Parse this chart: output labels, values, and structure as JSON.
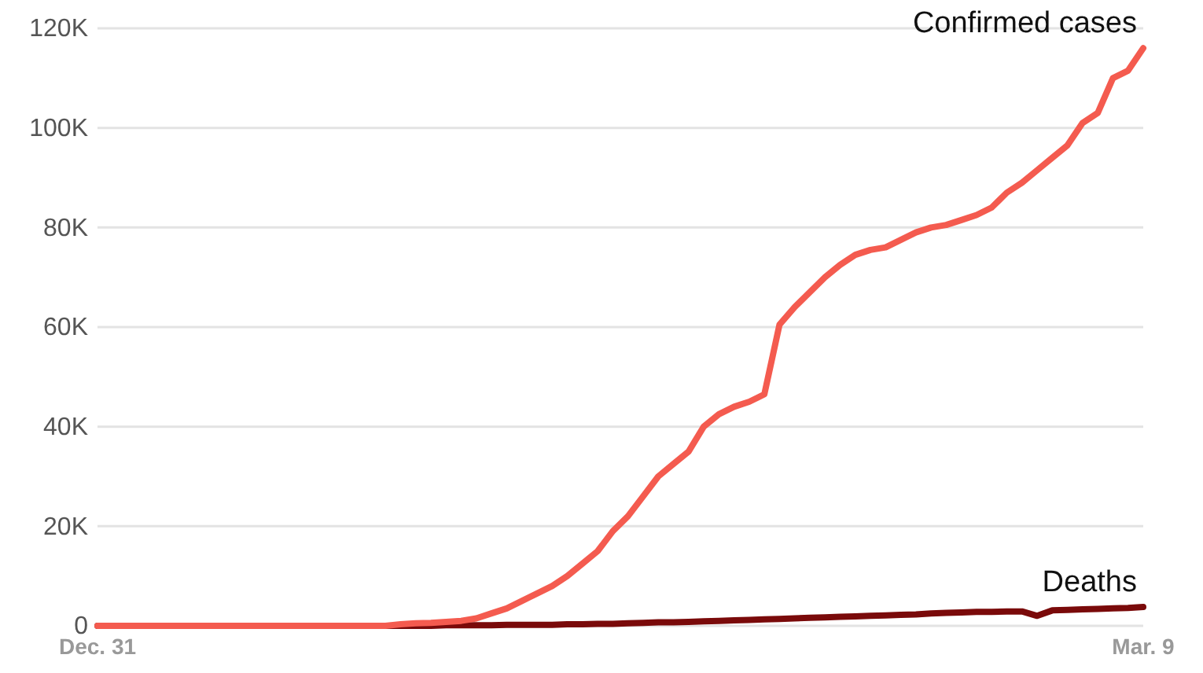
{
  "chart_data": {
    "type": "line",
    "ylim": [
      0,
      120000
    ],
    "yticks": [
      {
        "value": 0,
        "label": "0"
      },
      {
        "value": 20000,
        "label": "20K"
      },
      {
        "value": 40000,
        "label": "40K"
      },
      {
        "value": 60000,
        "label": "60K"
      },
      {
        "value": 80000,
        "label": "80K"
      },
      {
        "value": 100000,
        "label": "100K"
      },
      {
        "value": 120000,
        "label": "120K"
      }
    ],
    "categories": [
      "Dec. 31",
      null,
      null,
      null,
      null,
      null,
      null,
      null,
      null,
      null,
      null,
      null,
      null,
      null,
      null,
      null,
      null,
      null,
      null,
      null,
      null,
      null,
      null,
      null,
      null,
      null,
      null,
      null,
      null,
      null,
      null,
      null,
      null,
      null,
      null,
      null,
      null,
      null,
      null,
      null,
      null,
      null,
      null,
      null,
      null,
      null,
      null,
      null,
      null,
      null,
      null,
      null,
      null,
      null,
      null,
      null,
      null,
      null,
      null,
      null,
      null,
      null,
      null,
      null,
      null,
      null,
      null,
      null,
      null,
      "Mar. 9"
    ],
    "grid": "y",
    "line_style": "solid",
    "series": [
      {
        "name": "Confirmed cases",
        "color": "#f45b4f",
        "values": [
          0,
          0,
          0,
          0,
          0,
          0,
          0,
          0,
          0,
          0,
          0,
          0,
          0,
          0,
          0,
          0,
          0,
          0,
          0,
          0,
          300,
          500,
          600,
          800,
          1000,
          1500,
          2500,
          3500,
          5000,
          6500,
          8000,
          10000,
          12500,
          15000,
          19000,
          22000,
          26000,
          30000,
          32500,
          35000,
          40000,
          42500,
          44000,
          45000,
          46500,
          60500,
          64000,
          67000,
          70000,
          72500,
          74500,
          75500,
          76000,
          77500,
          79000,
          80000,
          80500,
          81500,
          82500,
          84000,
          87000,
          89000,
          91500,
          94000,
          96500,
          101000,
          103000,
          110000,
          111500,
          116000
        ]
      },
      {
        "name": "Deaths",
        "color": "#7a0a0a",
        "values": [
          0,
          0,
          0,
          0,
          0,
          0,
          0,
          0,
          0,
          0,
          0,
          0,
          0,
          0,
          0,
          0,
          0,
          0,
          0,
          0,
          0,
          0,
          0,
          100,
          100,
          100,
          100,
          200,
          200,
          200,
          200,
          300,
          300,
          400,
          400,
          500,
          600,
          700,
          700,
          800,
          900,
          1000,
          1100,
          1200,
          1300,
          1400,
          1500,
          1600,
          1700,
          1800,
          1900,
          2000,
          2100,
          2200,
          2300,
          2500,
          2600,
          2700,
          2800,
          2800,
          2900,
          2900,
          2000,
          3100,
          3200,
          3300,
          3400,
          3500,
          3600,
          3800
        ]
      }
    ]
  }
}
